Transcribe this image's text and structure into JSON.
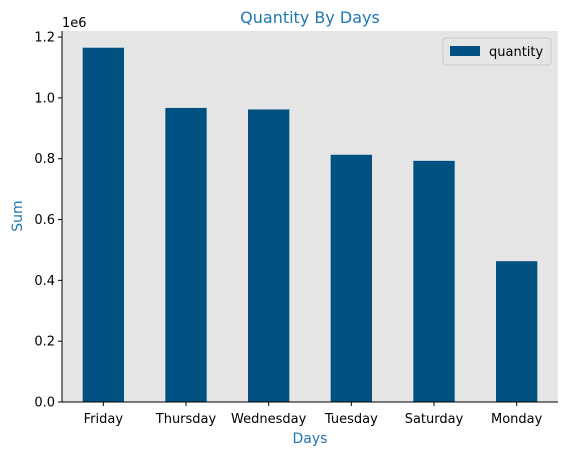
{
  "chart_data": {
    "type": "bar",
    "title": "Quantity By Days",
    "xlabel": "Days",
    "ylabel": "Sum",
    "offset_label": "1e6",
    "categories": [
      "Friday",
      "Thursday",
      "Wednesday",
      "Tuesday",
      "Saturday",
      "Monday"
    ],
    "series": [
      {
        "name": "quantity",
        "values": [
          1165000,
          967000,
          962000,
          813000,
          793000,
          463000
        ]
      }
    ],
    "ylim": [
      0,
      1220000
    ],
    "yticks": [
      0,
      200000,
      400000,
      600000,
      800000,
      1000000,
      1200000
    ],
    "ytick_labels": [
      "0.0",
      "0.2",
      "0.4",
      "0.6",
      "0.8",
      "1.0",
      "1.2"
    ],
    "grid": false,
    "legend_position": "top-right",
    "colors": {
      "bar": "#005082",
      "plot_background": "#e5e5e5",
      "title": "#1f77b4",
      "axis_label": "#1f77b4",
      "text": "#000000"
    }
  }
}
